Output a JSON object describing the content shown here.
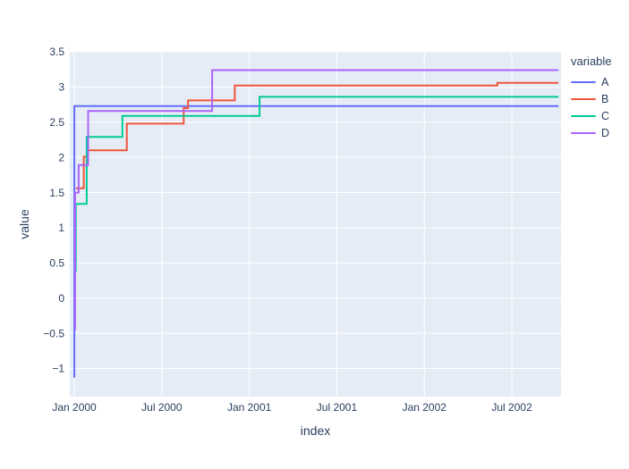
{
  "chart_data": {
    "type": "line",
    "line_shape": "steps-hv",
    "title": "",
    "xlabel": "index",
    "ylabel": "value",
    "legend_title": "variable",
    "x_unit": "months since Jan 2000",
    "xlim": [
      -0.31,
      33.37
    ],
    "ylim": [
      -1.4,
      3.5
    ],
    "grid": "on",
    "legend_position": "right",
    "plot_bg_color": "#e5ecf6",
    "grid_color": "#ffffff",
    "text_color": "#2a3f5f",
    "xticks": [
      {
        "m": 0,
        "label": "Jan 2000"
      },
      {
        "m": 6,
        "label": "Jul 2000"
      },
      {
        "m": 12,
        "label": "Jan 2001"
      },
      {
        "m": 18,
        "label": "Jul 2001"
      },
      {
        "m": 24,
        "label": "Jan 2002"
      },
      {
        "m": 30,
        "label": "Jul 2002"
      }
    ],
    "yticks": [
      {
        "v": 3.5,
        "label": "3.5"
      },
      {
        "v": 3,
        "label": "3"
      },
      {
        "v": 2.5,
        "label": "2.5"
      },
      {
        "v": 2,
        "label": "2"
      },
      {
        "v": 1.5,
        "label": "1.5"
      },
      {
        "v": 1,
        "label": "1"
      },
      {
        "v": 0.5,
        "label": "0.5"
      },
      {
        "v": 0,
        "label": "0"
      },
      {
        "v": -0.5,
        "label": "−0.5"
      },
      {
        "v": -1,
        "label": "−1"
      }
    ],
    "series": [
      {
        "name": "A",
        "color": "#636EFA",
        "points": [
          [
            0,
            -1.13
          ],
          [
            0,
            2.73
          ],
          [
            33.2,
            2.73
          ]
        ]
      },
      {
        "name": "B",
        "color": "#EF553B",
        "points": [
          [
            0.1,
            1.56
          ],
          [
            0.65,
            1.56
          ],
          [
            0.65,
            2.01
          ],
          [
            0.95,
            2.01
          ],
          [
            0.95,
            2.1
          ],
          [
            3.6,
            2.1
          ],
          [
            3.6,
            2.48
          ],
          [
            7.5,
            2.48
          ],
          [
            7.5,
            2.7
          ],
          [
            7.8,
            2.7
          ],
          [
            7.8,
            2.81
          ],
          [
            11,
            2.81
          ],
          [
            11,
            3.02
          ],
          [
            29,
            3.02
          ],
          [
            29,
            3.06
          ],
          [
            33.2,
            3.06
          ]
        ]
      },
      {
        "name": "C",
        "color": "#00CC96",
        "points": [
          [
            0,
            0.39
          ],
          [
            0.1,
            0.39
          ],
          [
            0.1,
            1.34
          ],
          [
            0.85,
            1.34
          ],
          [
            0.85,
            2.29
          ],
          [
            3.3,
            2.29
          ],
          [
            3.3,
            2.59
          ],
          [
            12.7,
            2.59
          ],
          [
            12.7,
            2.86
          ],
          [
            33.2,
            2.86
          ]
        ]
      },
      {
        "name": "D",
        "color": "#AB63FA",
        "points": [
          [
            0,
            -0.44
          ],
          [
            0.05,
            -0.44
          ],
          [
            0.05,
            1.5
          ],
          [
            0.3,
            1.5
          ],
          [
            0.3,
            1.89
          ],
          [
            0.95,
            1.89
          ],
          [
            0.95,
            2.66
          ],
          [
            9.45,
            2.66
          ],
          [
            9.45,
            3.24
          ],
          [
            33.2,
            3.24
          ]
        ]
      }
    ]
  }
}
